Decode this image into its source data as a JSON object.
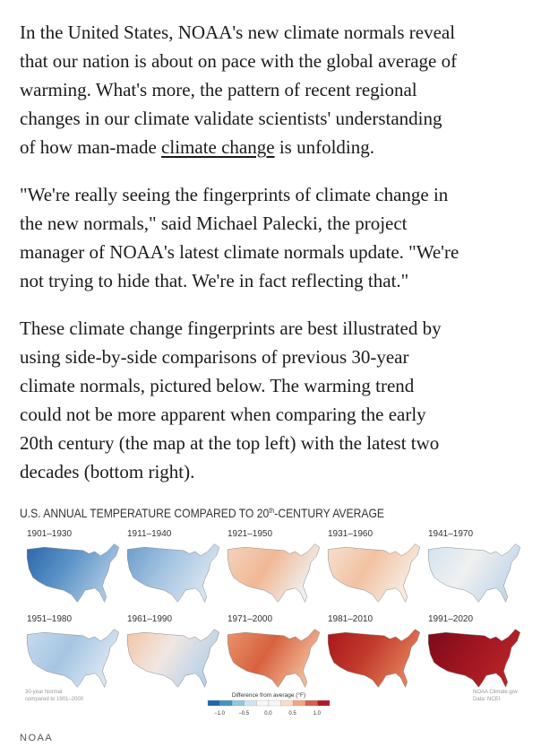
{
  "article": {
    "paragraphs": [
      {
        "lines": [
          "In the United States, NOAA's new climate normals reveal",
          "that our nation is about on pace with the global average of",
          "warming. What's more, the pattern of recent regional",
          "changes in our climate validate scientists' understanding"
        ],
        "last_line_start": "of how man-made ",
        "link": "climate change",
        "last_line_end": " is unfolding."
      },
      {
        "lines": [
          "\"We're really seeing the fingerprints of climate change in",
          "the new normals,\" said Michael Palecki, the project",
          "manager of NOAA's latest climate normals update. \"We're",
          "not trying to hide that. We're in fact reflecting that.\""
        ]
      },
      {
        "lines": [
          "These climate change fingerprints are best illustrated by",
          "using side-by-side comparisons of previous 30-year",
          "climate normals, pictured below. The warming trend",
          "could not be more apparent when comparing the early",
          "20th century (the map at the top left) with the latest two",
          "decades (bottom right)."
        ]
      }
    ]
  },
  "figure": {
    "title": "U.S. ANNUAL TEMPERATURE COMPARED TO 20",
    "title_superscript": "th",
    "title_end": "-CENTURY AVERAGE",
    "maps": [
      "1901–1930",
      "1911–1940",
      "1921–1950",
      "1931–1960",
      "1941–1970",
      "1951–1980",
      "1961–1990",
      "1971–2000",
      "1981–2010",
      "1991–2020"
    ],
    "legend_title": "Difference from average (°F)",
    "legend_ticks": [
      "−1.0",
      "−0.5",
      "0.0",
      "0.5",
      "1.0"
    ],
    "note_left": [
      "30-year Normal",
      "compared to 1901–2000"
    ],
    "note_right": [
      "NOAA Climate.gov",
      "Data: NCEI"
    ]
  },
  "caption": "NOAA"
}
